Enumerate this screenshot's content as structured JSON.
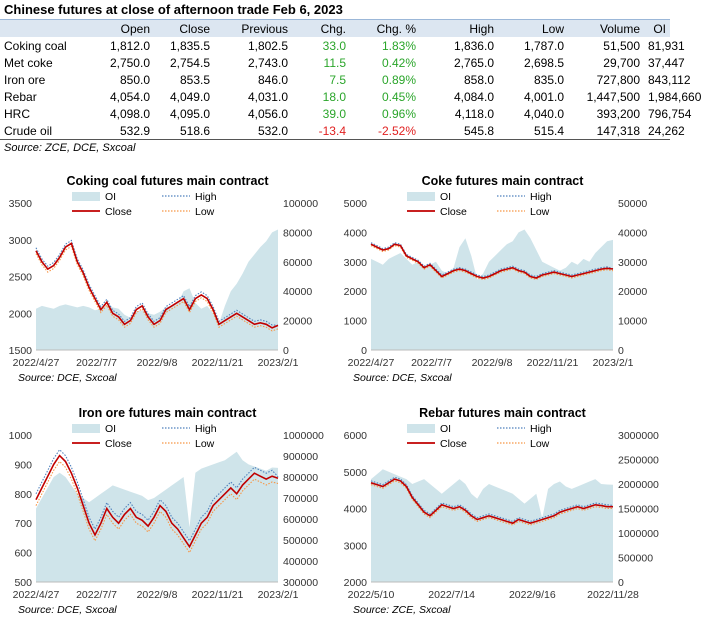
{
  "table": {
    "title": "Chinese futures at close of afternoon trade Feb 6, 2023",
    "headers": [
      "",
      "Open",
      "Close",
      "Previous",
      "Chg.",
      "Chg. %",
      "High",
      "Low",
      "Volume",
      "OI"
    ],
    "rows": [
      {
        "name": "Coking coal",
        "open": "1,812.0",
        "close": "1,835.5",
        "previous": "1,802.5",
        "chg": "33.0",
        "chg_pct": "1.83%",
        "high": "1,836.0",
        "low": "1,787.0",
        "volume": "51,500",
        "oi": "81,931",
        "dir": "up"
      },
      {
        "name": "Met coke",
        "open": "2,750.0",
        "close": "2,754.5",
        "previous": "2,743.0",
        "chg": "11.5",
        "chg_pct": "0.42%",
        "high": "2,765.0",
        "low": "2,698.5",
        "volume": "29,700",
        "oi": "37,447",
        "dir": "up"
      },
      {
        "name": "Iron ore",
        "open": "850.0",
        "close": "853.5",
        "previous": "846.0",
        "chg": "7.5",
        "chg_pct": "0.89%",
        "high": "858.0",
        "low": "835.0",
        "volume": "727,800",
        "oi": "843,112",
        "dir": "up"
      },
      {
        "name": "Rebar",
        "open": "4,054.0",
        "close": "4,049.0",
        "previous": "4,031.0",
        "chg": "18.0",
        "chg_pct": "0.45%",
        "high": "4,084.0",
        "low": "4,001.0",
        "volume": "1,447,500",
        "oi": "1,984,660",
        "dir": "up"
      },
      {
        "name": "HRC",
        "open": "4,098.0",
        "close": "4,095.0",
        "previous": "4,056.0",
        "chg": "39.0",
        "chg_pct": "0.96%",
        "high": "4,118.0",
        "low": "4,040.0",
        "volume": "393,200",
        "oi": "796,754",
        "dir": "up"
      },
      {
        "name": "Crude oil",
        "open": "532.9",
        "close": "518.6",
        "previous": "532.0",
        "chg": "-13.4",
        "chg_pct": "-2.52%",
        "high": "545.8",
        "low": "515.4",
        "volume": "147,318",
        "oi": "24,262",
        "dir": "down"
      }
    ],
    "source": "Source: ZCE, DCE, Sxcoal"
  },
  "colors": {
    "oi_area": "#cfe4ea",
    "close": "#c00000",
    "high": "#4f81bd",
    "low": "#f79646",
    "up": "#2aa52a",
    "down": "#e02020"
  },
  "chart_data": [
    {
      "type": "line",
      "title": "Coking coal futures main contract",
      "legend": [
        "OI",
        "High",
        "Close",
        "Low"
      ],
      "x_labels": [
        "2022/4/27",
        "2022/7/7",
        "2022/9/8",
        "2022/11/21",
        "2023/2/1"
      ],
      "y_left": {
        "min": 1500,
        "max": 3500,
        "ticks": [
          1500,
          2000,
          2500,
          3000,
          3500
        ]
      },
      "y_right": {
        "min": 0,
        "max": 100000,
        "ticks": [
          0,
          20000,
          40000,
          60000,
          80000,
          100000
        ]
      },
      "close": [
        2850,
        2700,
        2600,
        2650,
        2760,
        2900,
        2950,
        2700,
        2550,
        2350,
        2200,
        2050,
        2150,
        2000,
        1950,
        1850,
        1900,
        2050,
        2100,
        1950,
        1850,
        1900,
        2050,
        2100,
        2150,
        2200,
        2050,
        2200,
        2250,
        2200,
        2050,
        1850,
        1900,
        1950,
        2000,
        1950,
        1900,
        1850,
        1870,
        1850,
        1800,
        1835
      ],
      "high": [
        2890,
        2740,
        2640,
        2690,
        2800,
        2940,
        2990,
        2740,
        2590,
        2390,
        2240,
        2090,
        2190,
        2040,
        1990,
        1890,
        1940,
        2090,
        2140,
        1990,
        1890,
        1940,
        2090,
        2140,
        2190,
        2240,
        2090,
        2240,
        2290,
        2240,
        2090,
        1890,
        1940,
        1990,
        2040,
        1990,
        1940,
        1890,
        1910,
        1890,
        1840,
        1836
      ],
      "low": [
        2810,
        2660,
        2560,
        2610,
        2720,
        2860,
        2910,
        2660,
        2510,
        2310,
        2160,
        2010,
        2110,
        1960,
        1910,
        1810,
        1860,
        2010,
        2060,
        1910,
        1810,
        1860,
        2010,
        2060,
        2110,
        2160,
        2010,
        2160,
        2210,
        2160,
        2010,
        1810,
        1860,
        1910,
        1960,
        1910,
        1860,
        1810,
        1830,
        1810,
        1760,
        1787
      ],
      "oi": [
        28000,
        30000,
        29000,
        28000,
        30000,
        31000,
        30000,
        29000,
        30000,
        29000,
        27000,
        28000,
        30000,
        29000,
        28000,
        24000,
        22000,
        26000,
        27000,
        25000,
        24000,
        26000,
        29000,
        30000,
        32000,
        40000,
        42000,
        32000,
        28000,
        30000,
        25000,
        18000,
        30000,
        40000,
        45000,
        52000,
        60000,
        65000,
        70000,
        74000,
        80000,
        82000
      ],
      "source": "Source: DCE, Sxcoal"
    },
    {
      "type": "line",
      "title": "Coke futures main contract",
      "legend": [
        "OI",
        "High",
        "Close",
        "Low"
      ],
      "x_labels": [
        "2022/4/27",
        "2022/7/7",
        "2022/9/8",
        "2022/11/21",
        "2023/2/1"
      ],
      "y_left": {
        "min": 0,
        "max": 5000,
        "ticks": [
          0,
          1000,
          2000,
          3000,
          4000,
          5000
        ]
      },
      "y_right": {
        "min": 0,
        "max": 50000,
        "ticks": [
          0,
          10000,
          20000,
          30000,
          40000,
          50000
        ]
      },
      "close": [
        3600,
        3500,
        3400,
        3450,
        3600,
        3550,
        3200,
        3100,
        3000,
        2800,
        2900,
        2700,
        2500,
        2600,
        2700,
        2750,
        2700,
        2600,
        2500,
        2450,
        2500,
        2600,
        2700,
        2750,
        2800,
        2700,
        2650,
        2500,
        2450,
        2550,
        2600,
        2650,
        2600,
        2550,
        2500,
        2550,
        2600,
        2650,
        2700,
        2750,
        2780,
        2755
      ],
      "high": [
        3650,
        3550,
        3450,
        3500,
        3650,
        3600,
        3250,
        3150,
        3050,
        2850,
        2950,
        2750,
        2550,
        2650,
        2750,
        2800,
        2750,
        2650,
        2550,
        2500,
        2550,
        2650,
        2750,
        2800,
        2850,
        2750,
        2700,
        2550,
        2500,
        2600,
        2650,
        2700,
        2650,
        2600,
        2550,
        2600,
        2650,
        2700,
        2750,
        2800,
        2830,
        2765
      ],
      "low": [
        3550,
        3450,
        3350,
        3400,
        3550,
        3500,
        3150,
        3050,
        2950,
        2750,
        2850,
        2650,
        2450,
        2550,
        2650,
        2700,
        2650,
        2550,
        2450,
        2400,
        2450,
        2550,
        2650,
        2700,
        2750,
        2650,
        2600,
        2450,
        2400,
        2500,
        2550,
        2600,
        2550,
        2500,
        2450,
        2500,
        2550,
        2600,
        2650,
        2700,
        2730,
        2698
      ],
      "oi": [
        31000,
        30000,
        29000,
        31000,
        32000,
        33000,
        31000,
        29000,
        30000,
        28000,
        29000,
        30000,
        27000,
        26000,
        28000,
        35000,
        38000,
        32000,
        24000,
        26000,
        30000,
        32000,
        34000,
        36000,
        37000,
        40000,
        41000,
        38000,
        34000,
        30000,
        29000,
        28000,
        27000,
        28000,
        30000,
        29000,
        31000,
        30000,
        33000,
        35000,
        37000,
        37447
      ],
      "source": "Source: DCE, Sxcoal"
    },
    {
      "type": "line",
      "title": "Iron ore futures main contract",
      "legend": [
        "OI",
        "High",
        "Close",
        "Low"
      ],
      "x_labels": [
        "2022/4/27",
        "2022/7/7",
        "2022/9/8",
        "2022/11/21",
        "2023/2/1"
      ],
      "y_left": {
        "min": 500,
        "max": 1000,
        "ticks": [
          500,
          600,
          700,
          800,
          900,
          1000
        ]
      },
      "y_right": {
        "min": 300000,
        "max": 1000000,
        "ticks": [
          300000,
          400000,
          500000,
          600000,
          700000,
          800000,
          900000,
          1000000
        ]
      },
      "close": [
        780,
        820,
        860,
        900,
        930,
        910,
        870,
        820,
        760,
        700,
        660,
        700,
        750,
        720,
        700,
        730,
        750,
        720,
        710,
        690,
        720,
        760,
        740,
        700,
        680,
        650,
        620,
        660,
        700,
        720,
        760,
        780,
        800,
        820,
        800,
        830,
        850,
        870,
        860,
        850,
        860,
        853
      ],
      "high": [
        800,
        840,
        880,
        920,
        950,
        930,
        890,
        840,
        780,
        720,
        680,
        720,
        770,
        740,
        720,
        750,
        770,
        740,
        730,
        710,
        740,
        780,
        760,
        720,
        700,
        670,
        640,
        680,
        720,
        740,
        780,
        800,
        820,
        840,
        820,
        850,
        870,
        890,
        880,
        870,
        880,
        858
      ],
      "low": [
        760,
        800,
        840,
        880,
        910,
        890,
        850,
        800,
        740,
        680,
        640,
        680,
        730,
        700,
        680,
        710,
        730,
        700,
        690,
        670,
        700,
        740,
        720,
        680,
        660,
        630,
        600,
        640,
        680,
        700,
        740,
        760,
        780,
        800,
        780,
        810,
        830,
        850,
        840,
        830,
        840,
        835
      ],
      "oi": [
        650000,
        700000,
        750000,
        800000,
        820000,
        800000,
        760000,
        720000,
        700000,
        680000,
        700000,
        720000,
        740000,
        760000,
        750000,
        740000,
        730000,
        720000,
        710000,
        690000,
        700000,
        720000,
        740000,
        760000,
        780000,
        800000,
        560000,
        820000,
        840000,
        850000,
        860000,
        870000,
        880000,
        900000,
        920000,
        880000,
        860000,
        850000,
        840000,
        830000,
        845000,
        843112
      ],
      "source": "Source: DCE, Sxcoal"
    },
    {
      "type": "line",
      "title": "Rebar futures main contract",
      "legend": [
        "OI",
        "High",
        "Close",
        "Low"
      ],
      "x_labels": [
        "2022/5/10",
        "2022/7/14",
        "2022/9/16",
        "2022/11/28"
      ],
      "y_left": {
        "min": 2000,
        "max": 6000,
        "ticks": [
          2000,
          3000,
          4000,
          5000,
          6000
        ]
      },
      "y_right": {
        "min": 0,
        "max": 3000000,
        "ticks": [
          0,
          500000,
          1000000,
          1500000,
          2000000,
          2500000,
          3000000
        ]
      },
      "close": [
        4700,
        4650,
        4600,
        4700,
        4800,
        4750,
        4600,
        4300,
        4100,
        3900,
        3800,
        3950,
        4100,
        4050,
        4000,
        4050,
        3950,
        3800,
        3700,
        3750,
        3800,
        3750,
        3700,
        3650,
        3600,
        3700,
        3650,
        3600,
        3650,
        3700,
        3750,
        3800,
        3900,
        3950,
        4000,
        4050,
        4000,
        4050,
        4100,
        4080,
        4050,
        4049
      ],
      "high": [
        4750,
        4700,
        4650,
        4750,
        4850,
        4800,
        4650,
        4350,
        4150,
        3950,
        3850,
        4000,
        4150,
        4100,
        4050,
        4100,
        4000,
        3850,
        3750,
        3800,
        3850,
        3800,
        3750,
        3700,
        3650,
        3750,
        3700,
        3650,
        3700,
        3750,
        3800,
        3850,
        3950,
        4000,
        4050,
        4100,
        4050,
        4100,
        4150,
        4130,
        4100,
        4084
      ],
      "low": [
        4650,
        4600,
        4550,
        4650,
        4750,
        4700,
        4550,
        4250,
        4050,
        3850,
        3750,
        3900,
        4050,
        4000,
        3950,
        4000,
        3900,
        3750,
        3650,
        3700,
        3750,
        3700,
        3650,
        3600,
        3550,
        3650,
        3600,
        3550,
        3600,
        3650,
        3700,
        3750,
        3850,
        3900,
        3950,
        4000,
        3950,
        4000,
        4050,
        4030,
        4000,
        4001
      ],
      "oi": [
        2100000,
        2200000,
        2300000,
        2250000,
        2200000,
        2150000,
        2100000,
        2000000,
        2050000,
        2100000,
        2000000,
        1900000,
        1800000,
        1900000,
        2000000,
        2100000,
        2000000,
        1800000,
        1700000,
        1900000,
        2000000,
        1950000,
        1900000,
        1850000,
        1800000,
        1700000,
        1600000,
        1700000,
        1800000,
        1300000,
        1900000,
        2000000,
        2050000,
        1950000,
        1900000,
        1950000,
        2000000,
        2050000,
        2100000,
        2000000,
        1990000,
        1984660
      ],
      "source": "Source: ZCE, Sxcoal"
    }
  ]
}
